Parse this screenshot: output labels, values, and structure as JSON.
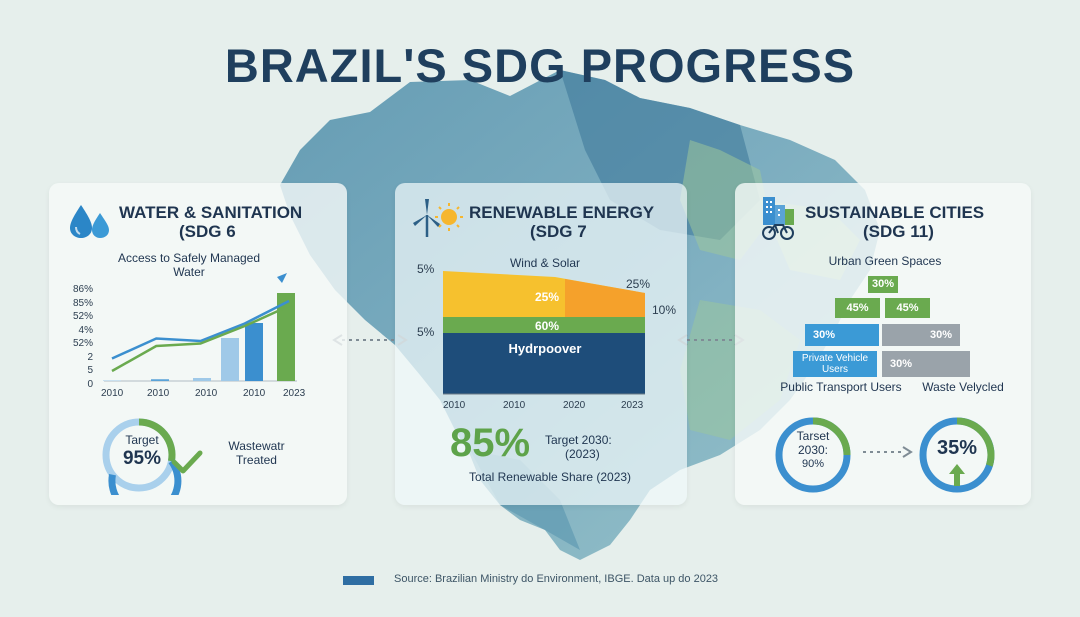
{
  "title": "BRAZIL'S SDG PROGRESS",
  "colors": {
    "navy": "#1f3f5e",
    "blue": "#3b8fcf",
    "green": "#6aaa4f",
    "yellow": "#f6c12e",
    "orange": "#f59b2a",
    "gray": "#9aa3aa",
    "hydro": "#1e4d7a"
  },
  "water": {
    "title_line1": "WATER & SANITATION",
    "title_line2": "(SDG 6",
    "icon": "water-drops-icon",
    "chart_title_line1": "Access to Safely Managed",
    "chart_title_line2": "Water",
    "y_ticks": [
      "86%",
      "85%",
      "52%",
      "4%",
      "52%",
      "2",
      "5",
      "0"
    ],
    "x_ticks": [
      "2010",
      "2010",
      "2010",
      "2010",
      "2023"
    ],
    "gauge_label": "Target",
    "gauge_value": "95%",
    "gauge_fraction": 0.95,
    "side_label_line1": "Wastewatr",
    "side_label_line2": "Treated"
  },
  "energy": {
    "title_line1": "RENEWABLE ENERGY",
    "title_line2": "(SDG 7",
    "icon": "wind-turbine-sun-icon",
    "chart_title": "Wind & Solar",
    "left_labels": [
      "5%",
      "5%"
    ],
    "right_labels": [
      "25%",
      "10%"
    ],
    "band_labels": [
      "25%",
      "60%",
      "Hydrpoover"
    ],
    "x_ticks": [
      "2010",
      "2010",
      "2020",
      "2023"
    ],
    "big_value": "85%",
    "target_line1": "Target 2030:",
    "target_line2": "(2023)",
    "caption": "Total Renewable Share (2023)"
  },
  "cities": {
    "title_line1": "SUSTAINABLE CITIES",
    "title_line2": "(SDG 11)",
    "icon": "city-bicycle-icon",
    "chart_title": "Urban Green Spaces",
    "pyramid": [
      "30%",
      "45%",
      "45%",
      "30%",
      "30%",
      "Private Vehicle Users",
      "30%"
    ],
    "axis_labels": [
      "Public Transport Users",
      "Waste Velycled"
    ],
    "gauge1_line1": "Tarset",
    "gauge1_line2": "2030:",
    "gauge1_line3": "90%",
    "gauge1_fraction": 0.9,
    "gauge2_value": "35%",
    "gauge2_fraction": 0.35
  },
  "source": "Source: Brazilian Ministry do Environment, IBGE. Data up do 2023",
  "chart_data": [
    {
      "type": "line",
      "title": "Access to Safely Managed Water",
      "categories": [
        "2010",
        "2010",
        "2010",
        "2010",
        "2023"
      ],
      "series": [
        {
          "values": [
            0.9,
            1.7,
            1.6,
            2.3,
            3.2
          ]
        },
        {
          "values": [
            0.4,
            1.4,
            1.5,
            2.2,
            3.0
          ]
        }
      ],
      "bars": [
        0.0,
        0.05,
        0.1,
        1.7,
        2.3,
        3.5
      ]
    },
    {
      "type": "area",
      "title": "Wind & Solar",
      "categories": [
        "2010",
        "2010",
        "2020",
        "2023"
      ],
      "series": [
        {
          "name": "Hydrpoover",
          "values": [
            60,
            60,
            60,
            60
          ]
        },
        {
          "values": [
            5,
            5,
            5,
            5
          ]
        },
        {
          "values": [
            25,
            25,
            23,
            10
          ]
        }
      ]
    }
  ]
}
